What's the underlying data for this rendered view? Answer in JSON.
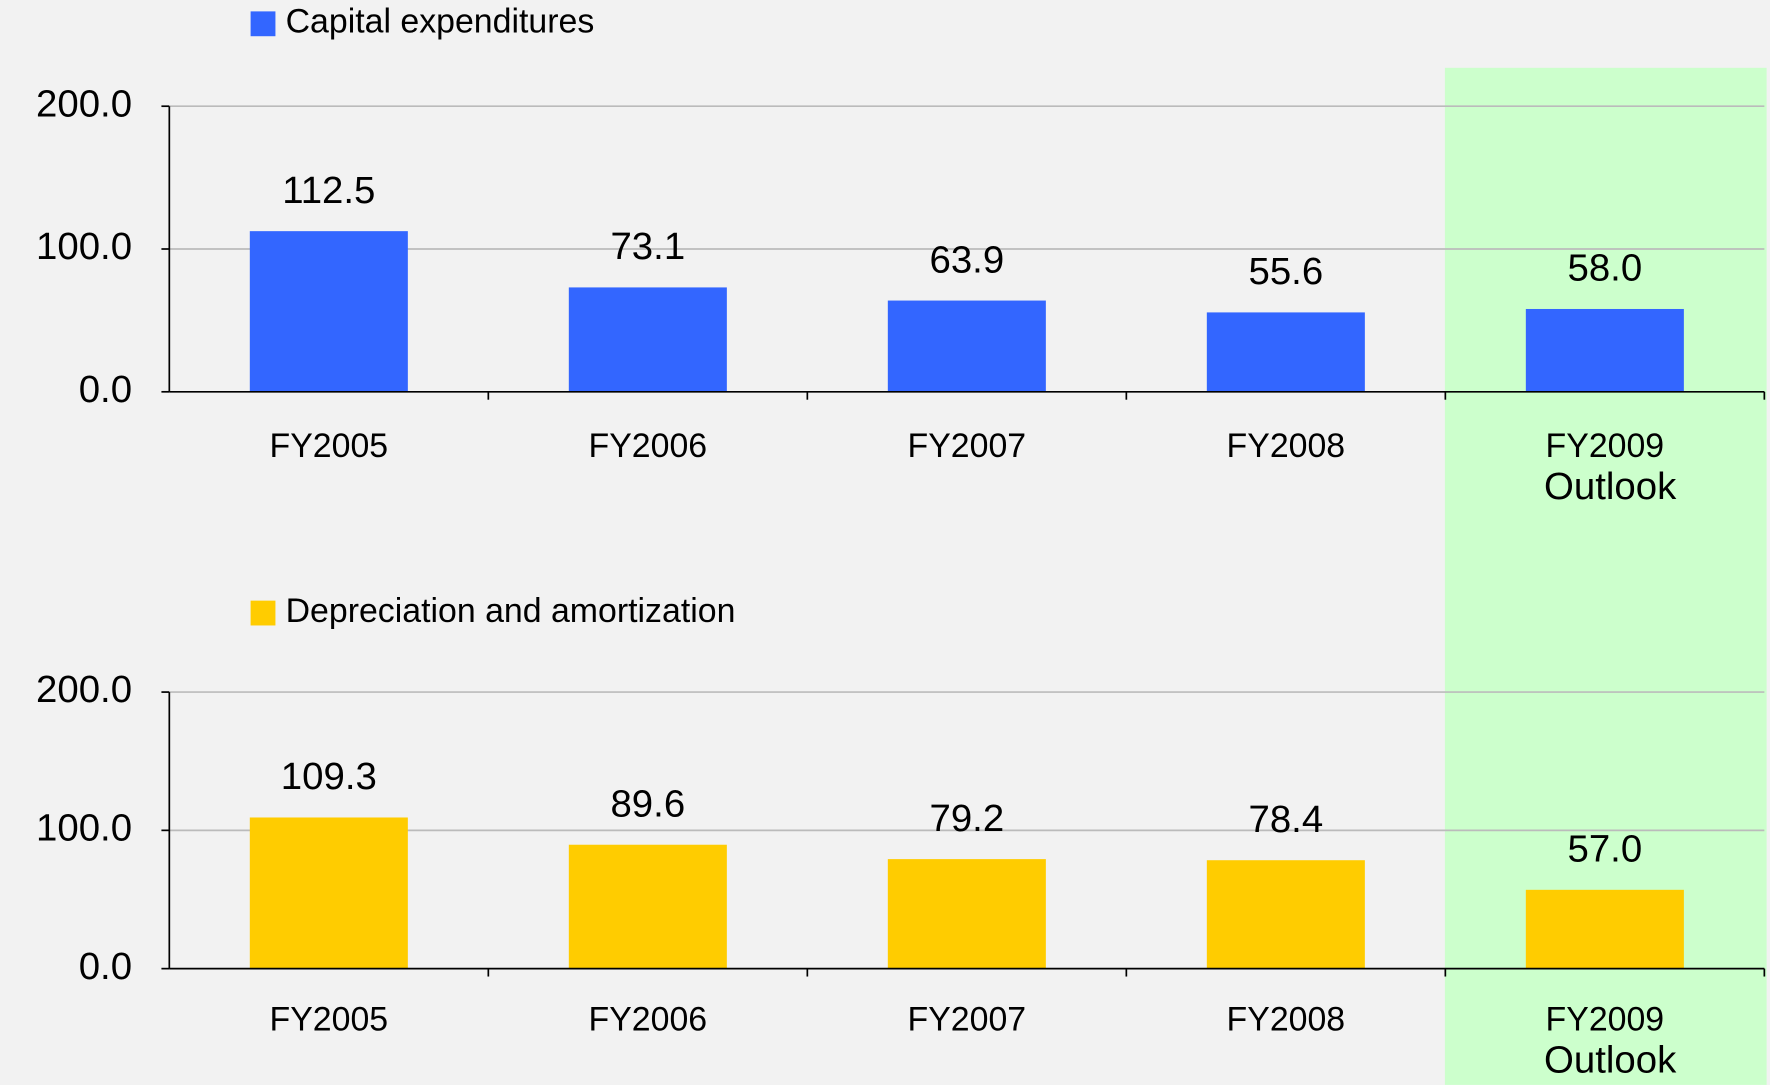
{
  "chart_data": [
    {
      "type": "bar",
      "categories": [
        "FY2005",
        "FY2006",
        "FY2007",
        "FY2008",
        "FY2009 Outlook"
      ],
      "series": [
        {
          "name": "Capital expenditures",
          "color": "#3366ff",
          "label_color": "#1a1a80",
          "values": [
            112.5,
            73.1,
            63.9,
            55.6,
            58.0
          ],
          "value_labels": [
            "112.5",
            "73.1",
            "63.9",
            "55.6",
            "58.0"
          ]
        }
      ],
      "ylim": [
        0,
        200
      ],
      "yticks": [
        {
          "value": 0,
          "label": "0.0"
        },
        {
          "value": 100,
          "label": "100.0"
        },
        {
          "value": 200,
          "label": "200.0"
        }
      ],
      "grid": true
    },
    {
      "type": "bar",
      "categories": [
        "FY2005",
        "FY2006",
        "FY2007",
        "FY2008",
        "FY2009 Outlook"
      ],
      "series": [
        {
          "name": "Depreciation and amortization",
          "color": "#ffcc00",
          "label_color": "#a0400a",
          "values": [
            109.3,
            89.6,
            79.2,
            78.4,
            57.0
          ],
          "value_labels": [
            "109.3",
            "89.6",
            "79.2",
            "78.4",
            "57.0"
          ]
        }
      ],
      "ylim": [
        0,
        200
      ],
      "yticks": [
        {
          "value": 0,
          "label": "0.0"
        },
        {
          "value": 100,
          "label": "100.0"
        },
        {
          "value": 200,
          "label": "200.0"
        }
      ],
      "grid": true
    }
  ]
}
